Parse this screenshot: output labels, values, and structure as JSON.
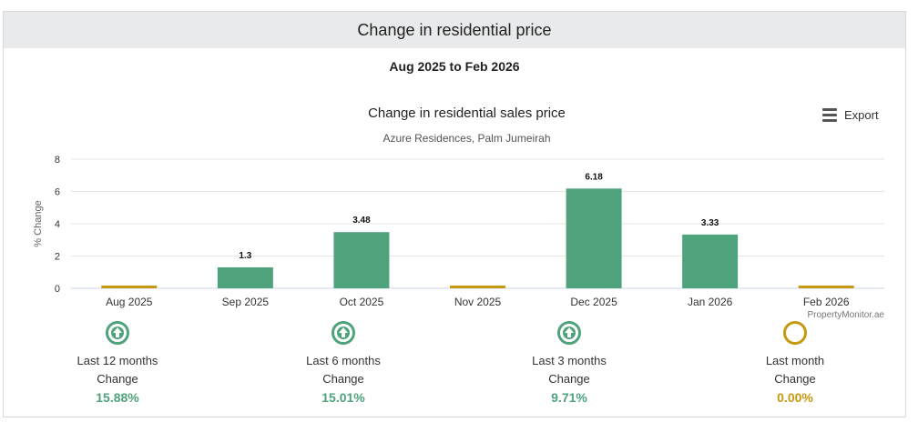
{
  "card": {
    "title": "Change in residential price",
    "period": "Aug 2025 to Feb 2026"
  },
  "export": {
    "label": "Export",
    "icon": "menu-icon"
  },
  "chart_data": {
    "type": "bar",
    "title": "Change in residential sales price",
    "subtitle": "Azure Residences, Palm Jumeirah",
    "ylabel": "% Change",
    "xlabel": "",
    "categories": [
      "Aug 2025",
      "Sep 2025",
      "Oct 2025",
      "Nov 2025",
      "Dec 2025",
      "Jan 2026",
      "Feb 2026"
    ],
    "values": [
      0,
      1.3,
      3.48,
      0,
      6.18,
      3.33,
      0
    ],
    "data_labels": [
      "",
      "1.3",
      "3.48",
      "",
      "6.18",
      "3.33",
      ""
    ],
    "ylim": [
      0,
      8
    ],
    "yticks": [
      "0",
      "2",
      "4",
      "6",
      "8"
    ],
    "grid": true,
    "credits": "PropertyMonitor.ae",
    "colors": {
      "positive": "#4ea27c",
      "zero": "#c69a10"
    }
  },
  "stats": [
    {
      "label1": "Last 12 months",
      "label2": "Change",
      "value": "15.88%",
      "trend": "up",
      "icon": "up-arrow-icon"
    },
    {
      "label1": "Last 6 months",
      "label2": "Change",
      "value": "15.01%",
      "trend": "up",
      "icon": "up-arrow-icon"
    },
    {
      "label1": "Last 3 months",
      "label2": "Change",
      "value": "9.71%",
      "trend": "up",
      "icon": "up-arrow-icon"
    },
    {
      "label1": "Last month",
      "label2": "Change",
      "value": "0.00%",
      "trend": "flat",
      "icon": "ring-icon"
    }
  ]
}
